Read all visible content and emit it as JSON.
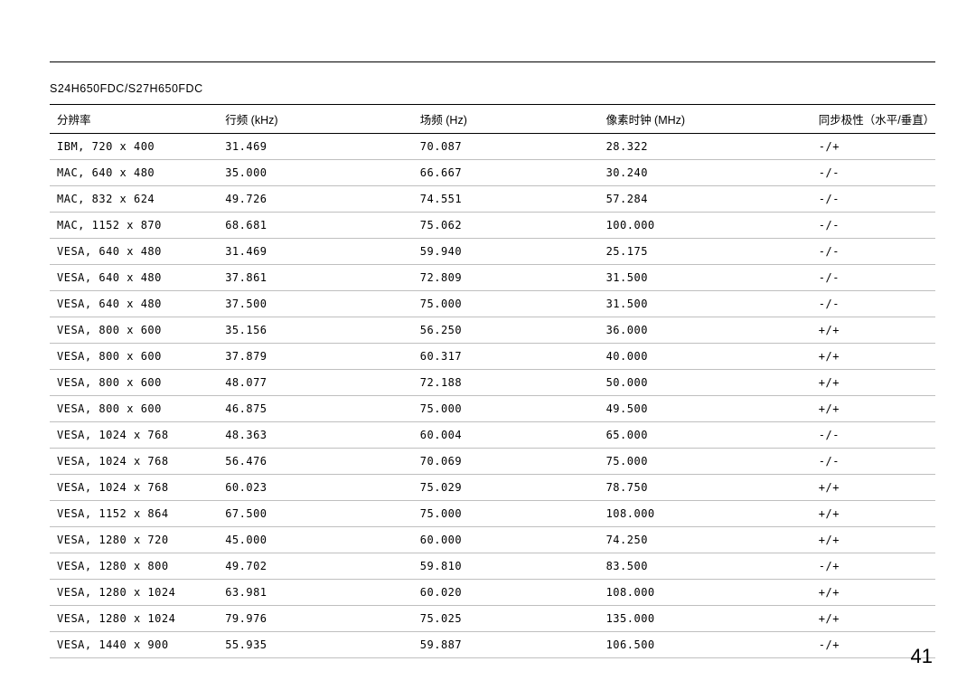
{
  "page": {
    "model_title": "S24H650FDC/S27H650FDC",
    "page_number": "41"
  },
  "table": {
    "columns": [
      {
        "label": "分辨率",
        "class": "col-res"
      },
      {
        "label": "行频 (kHz)",
        "class": "col-hfreq"
      },
      {
        "label": "场频 (Hz)",
        "class": "col-vfreq"
      },
      {
        "label": "像素时钟 (MHz)",
        "class": "col-pclk"
      },
      {
        "label": "同步极性（水平/垂直）",
        "class": "col-sync"
      }
    ],
    "rows": [
      [
        "IBM, 720 x 400",
        "31.469",
        "70.087",
        "28.322",
        "-/+"
      ],
      [
        "MAC, 640 x 480",
        "35.000",
        "66.667",
        "30.240",
        "-/-"
      ],
      [
        "MAC, 832 x 624",
        "49.726",
        "74.551",
        "57.284",
        "-/-"
      ],
      [
        "MAC, 1152 x 870",
        "68.681",
        "75.062",
        "100.000",
        "-/-"
      ],
      [
        "VESA, 640 x 480",
        "31.469",
        "59.940",
        "25.175",
        "-/-"
      ],
      [
        "VESA, 640 x 480",
        "37.861",
        "72.809",
        "31.500",
        "-/-"
      ],
      [
        "VESA, 640 x 480",
        "37.500",
        "75.000",
        "31.500",
        "-/-"
      ],
      [
        "VESA, 800 x 600",
        "35.156",
        "56.250",
        "36.000",
        "+/+"
      ],
      [
        "VESA, 800 x 600",
        "37.879",
        "60.317",
        "40.000",
        "+/+"
      ],
      [
        "VESA, 800 x 600",
        "48.077",
        "72.188",
        "50.000",
        "+/+"
      ],
      [
        "VESA, 800 x 600",
        "46.875",
        "75.000",
        "49.500",
        "+/+"
      ],
      [
        "VESA, 1024 x 768",
        "48.363",
        "60.004",
        "65.000",
        "-/-"
      ],
      [
        "VESA, 1024 x 768",
        "56.476",
        "70.069",
        "75.000",
        "-/-"
      ],
      [
        "VESA, 1024 x 768",
        "60.023",
        "75.029",
        "78.750",
        "+/+"
      ],
      [
        "VESA, 1152 x 864",
        "67.500",
        "75.000",
        "108.000",
        "+/+"
      ],
      [
        "VESA, 1280 x 720",
        "45.000",
        "60.000",
        "74.250",
        "+/+"
      ],
      [
        "VESA, 1280 x 800",
        "49.702",
        "59.810",
        "83.500",
        "-/+"
      ],
      [
        "VESA, 1280 x 1024",
        "63.981",
        "60.020",
        "108.000",
        "+/+"
      ],
      [
        "VESA, 1280 x 1024",
        "79.976",
        "75.025",
        "135.000",
        "+/+"
      ],
      [
        "VESA, 1440 x 900",
        "55.935",
        "59.887",
        "106.500",
        "-/+"
      ]
    ]
  }
}
